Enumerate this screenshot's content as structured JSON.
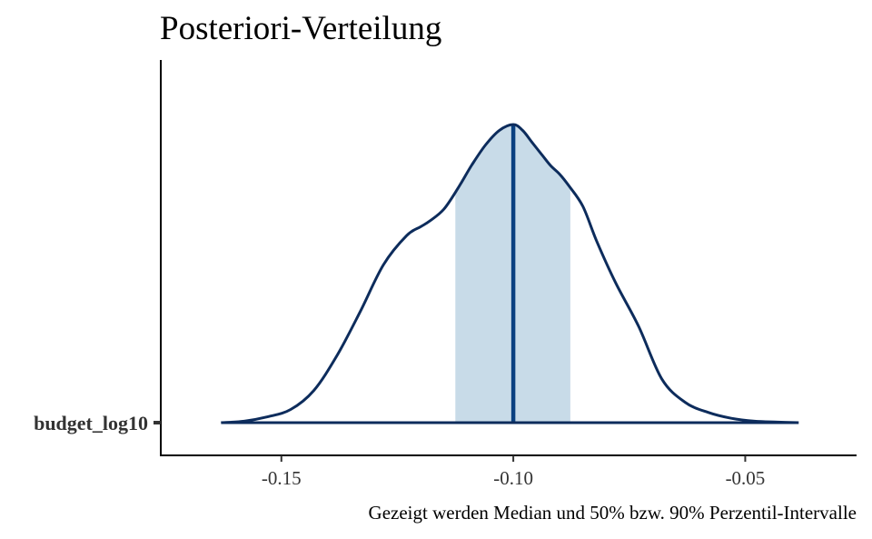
{
  "chart_data": {
    "type": "area",
    "title": "Posteriori-Verteilung",
    "caption": "Gezeigt werden Median und 50% bzw. 90% Perzentil-Intervalle",
    "parameter": "budget_log10",
    "x_ticks": [
      -0.15,
      -0.1,
      -0.05
    ],
    "x_tick_labels": [
      "-0.15",
      "-0.10",
      "-0.05"
    ],
    "xlim": [
      -0.176,
      -0.026
    ],
    "median": -0.1,
    "interval_50": [
      -0.1125,
      -0.0877
    ],
    "interval_90": [
      -0.163,
      -0.0385
    ],
    "density": {
      "x": [
        -0.163,
        -0.158,
        -0.153,
        -0.148,
        -0.143,
        -0.138,
        -0.133,
        -0.128,
        -0.123,
        -0.12,
        -0.118,
        -0.115,
        -0.112,
        -0.109,
        -0.106,
        -0.103,
        -0.1,
        -0.098,
        -0.096,
        -0.094,
        -0.092,
        -0.09,
        -0.088,
        -0.085,
        -0.082,
        -0.078,
        -0.073,
        -0.068,
        -0.063,
        -0.058,
        -0.053,
        -0.048,
        -0.043,
        -0.0385
      ],
      "y": [
        0.0,
        0.005,
        0.02,
        0.045,
        0.11,
        0.23,
        0.38,
        0.54,
        0.64,
        0.67,
        0.69,
        0.73,
        0.8,
        0.88,
        0.95,
        1.0,
        1.02,
        1.0,
        0.96,
        0.92,
        0.88,
        0.85,
        0.81,
        0.74,
        0.62,
        0.48,
        0.33,
        0.15,
        0.07,
        0.035,
        0.015,
        0.005,
        0.002,
        0.0
      ]
    },
    "colors": {
      "line": "#0d2c5c",
      "median": "#0a4080",
      "interval_fill": "#c8dbe8",
      "axis": "#000000"
    }
  }
}
